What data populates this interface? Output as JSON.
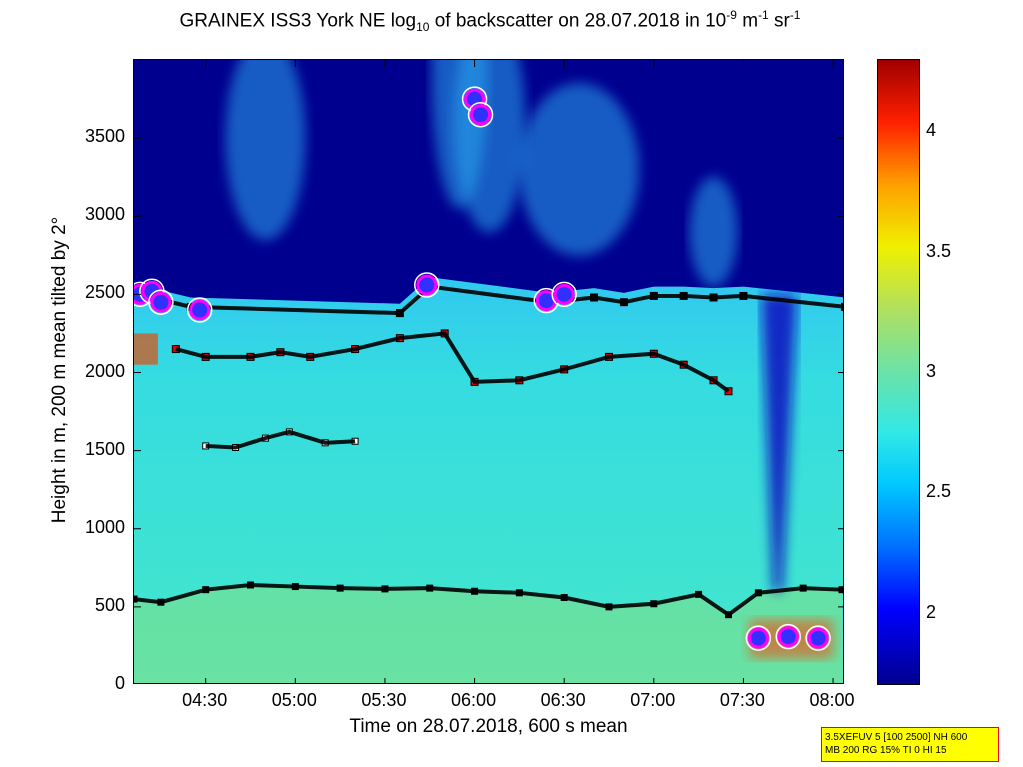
{
  "title": {
    "prefix": "GRAINEX ISS3 York NE log",
    "sub": "10",
    "middle": " of backscatter on 28.07.2018 in 10",
    "sup1": "-9",
    "unit1": " m",
    "sup2": "-1",
    "unit2": " sr",
    "sup3": "-1"
  },
  "axes": {
    "ylabel": "Height in m, 200 m mean tilted by 2°",
    "xlabel": "Time on 28.07.2018, 600 s mean",
    "y_ticks": [
      "0",
      "500",
      "1000",
      "1500",
      "2000",
      "2500",
      "3000",
      "3500"
    ],
    "x_ticks": [
      "04:30",
      "05:00",
      "05:30",
      "06:00",
      "06:30",
      "07:00",
      "07:30",
      "08:00"
    ],
    "colorbar_ticks": [
      "2",
      "2.5",
      "3",
      "3.5",
      "4"
    ]
  },
  "infobox": {
    "line1": "3.5XEFUV 5 [100 2500] NH 600",
    "line2": "MB 200 RG 15% TI 0 HI 15"
  },
  "colors": {
    "background_low": "#00008f",
    "aerosol_layer": "#40e0d0",
    "mixed_layer": "#6be0a0",
    "marker_black": "#000000",
    "marker_white": "#ffffff",
    "marker_red": "#e00000",
    "marker_yellow": "#ffff00",
    "cloud_base": "#3030ff"
  },
  "chart_data": {
    "type": "heatmap",
    "variable": "log10 of backscatter",
    "x_range": [
      "04:06",
      "08:04"
    ],
    "ylim": [
      0,
      4000
    ],
    "clim": [
      1.7,
      4.3
    ],
    "colormap": "jet",
    "layer_low": {
      "name": "",
      "times": [
        "04:06",
        "04:15",
        "04:30",
        "04:45",
        "05:00",
        "05:15",
        "05:30",
        "05:45",
        "06:00",
        "06:15",
        "06:30",
        "06:45",
        "07:00",
        "07:15",
        "07:25",
        "07:35",
        "07:50",
        "08:03"
      ],
      "heights": [
        550,
        530,
        610,
        640,
        630,
        620,
        615,
        620,
        600,
        590,
        560,
        500,
        520,
        580,
        450,
        590,
        620,
        610
      ]
    },
    "layer_mid": {
      "name": "",
      "times": [
        "04:20",
        "04:30",
        "04:45",
        "04:55",
        "05:05",
        "05:20",
        "05:35",
        "05:50",
        "06:00",
        "06:15",
        "06:30",
        "06:45",
        "07:00",
        "07:10",
        "07:20",
        "07:25"
      ],
      "heights": [
        2150,
        2100,
        2100,
        2130,
        2100,
        2150,
        2220,
        2250,
        1940,
        1950,
        2020,
        2100,
        2120,
        2050,
        1950,
        1880
      ]
    },
    "layer_aux": {
      "name": "",
      "times": [
        "04:30",
        "04:40",
        "04:50",
        "04:58",
        "05:10",
        "05:20"
      ],
      "heights": [
        1530,
        1520,
        1580,
        1620,
        1550,
        1560
      ]
    },
    "layer_top": {
      "name": "",
      "times": [
        "04:06",
        "04:12",
        "04:25",
        "05:35",
        "05:45",
        "06:25",
        "06:40",
        "06:50",
        "07:00",
        "07:10",
        "07:20",
        "07:30",
        "08:04"
      ],
      "heights": [
        2500,
        2480,
        2420,
        2380,
        2550,
        2450,
        2480,
        2450,
        2490,
        2490,
        2480,
        2490,
        2420
      ]
    },
    "cloud_bases": [
      {
        "time": "04:08",
        "height": 2500
      },
      {
        "time": "04:12",
        "height": 2520
      },
      {
        "time": "04:15",
        "height": 2450
      },
      {
        "time": "04:28",
        "height": 2400
      },
      {
        "time": "05:44",
        "height": 2560
      },
      {
        "time": "06:00",
        "height": 3750
      },
      {
        "time": "06:02",
        "height": 3650
      },
      {
        "time": "06:24",
        "height": 2460
      },
      {
        "time": "06:30",
        "height": 2500
      },
      {
        "time": "07:35",
        "height": 300
      },
      {
        "time": "07:45",
        "height": 310
      },
      {
        "time": "07:55",
        "height": 300
      }
    ]
  }
}
